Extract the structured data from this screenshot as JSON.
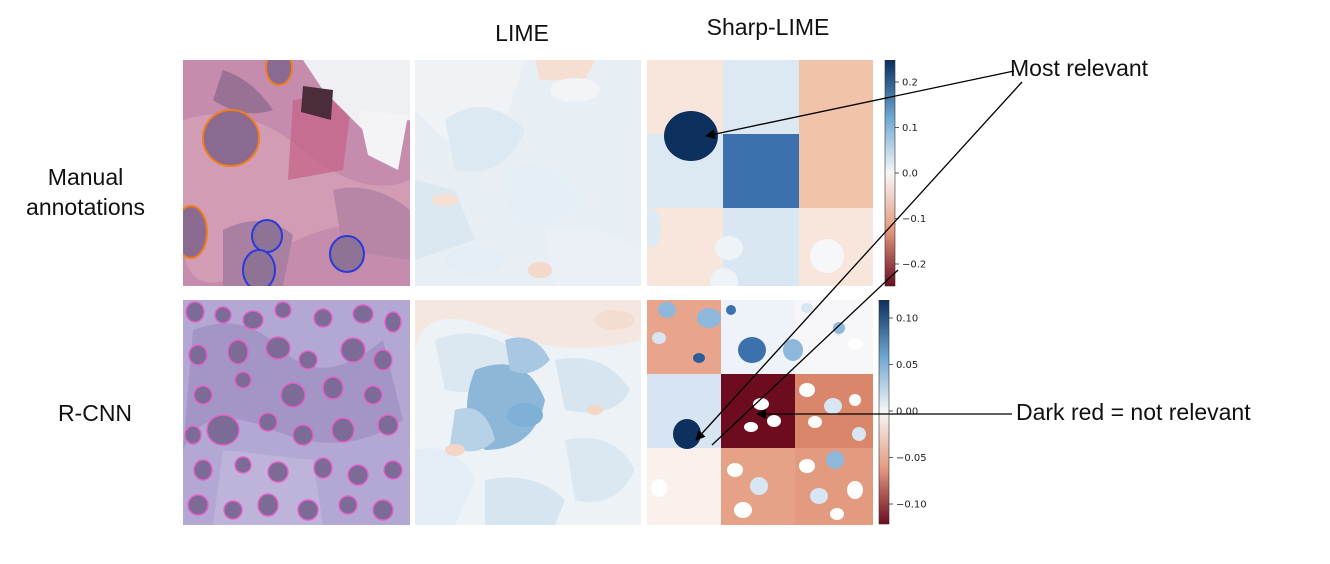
{
  "columns": {
    "lime": "LIME",
    "sharp_lime": "Sharp-LIME"
  },
  "rows": {
    "manual": [
      "Manual",
      "annotations"
    ],
    "rcnn": "R-CNN"
  },
  "annotations": {
    "most_relevant": "Most relevant",
    "dark_red": "Dark red = not relevant"
  },
  "colorbars": {
    "top": {
      "ticks": [
        "0.2",
        "0.1",
        "0.0",
        "−0.1",
        "−0.2"
      ]
    },
    "bottom": {
      "ticks": [
        "0.10",
        "0.05",
        "0.00",
        "−0.05",
        "−0.10"
      ]
    }
  },
  "colors": {
    "blue_dark": "#0d305f",
    "blue_mid": "#3f74b0",
    "blue_light": "#d5e6f2",
    "red_dark": "#6e0c1f",
    "red_mid": "#d9866a",
    "red_light": "#f5d9ca",
    "tissue_pink": "#c98fb0",
    "tissue_purple": "#9a7fb5",
    "outline_orange": "#f07d1b",
    "outline_blue": "#2a3ad6",
    "outline_pink": "#e85fc7"
  }
}
